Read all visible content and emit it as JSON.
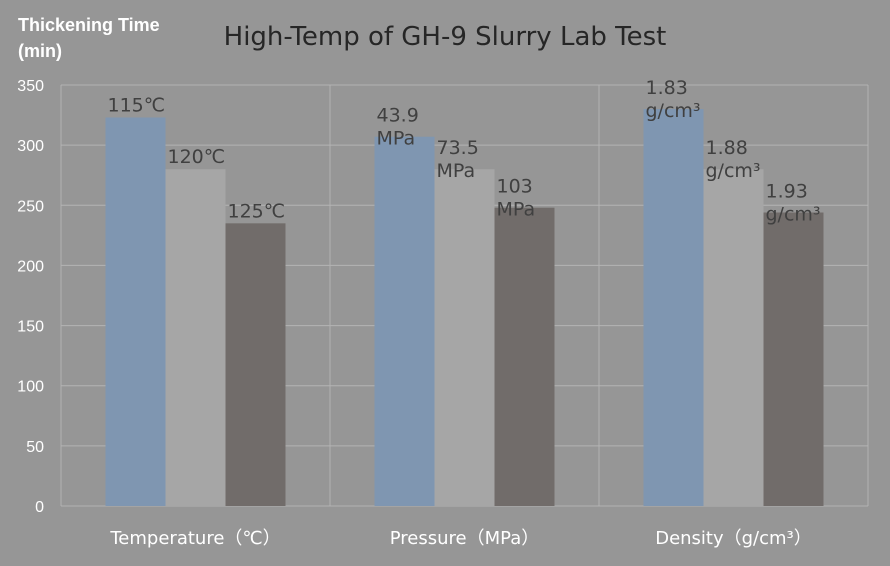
{
  "chart_data": {
    "type": "bar",
    "title": "High-Temp of GH-9 Slurry Lab Test",
    "ylabel": [
      "Thickening Time",
      "(min)"
    ],
    "xlabel": "",
    "ylim": [
      0,
      350
    ],
    "yticks": [
      "0",
      "50",
      "100",
      "150",
      "200",
      "250",
      "300",
      "350"
    ],
    "grid": true,
    "categories": [
      "Temperature（℃）",
      "Pressure（MPa）",
      "Density（g/cm³）"
    ],
    "series": [
      {
        "values": [
          323,
          307,
          330
        ]
      },
      {
        "values": [
          280,
          280,
          280
        ]
      },
      {
        "values": [
          235,
          248,
          244
        ]
      }
    ],
    "data_labels": [
      [
        [
          "115℃"
        ],
        [
          "120℃"
        ],
        [
          "125℃"
        ]
      ],
      [
        [
          "43.9",
          "MPa"
        ],
        [
          "73.5",
          "MPa"
        ],
        [
          "103",
          "MPa"
        ]
      ],
      [
        [
          "1.83",
          "g/cm³"
        ],
        [
          "1.88",
          "g/cm³"
        ],
        [
          "1.93",
          "g/cm³"
        ]
      ]
    ],
    "colors": [
      "#7f96b1",
      "#a6a6a6",
      "#716c6a"
    ],
    "label_color": "#404040",
    "tick_color": "#ffffff",
    "title_color": "#262626"
  }
}
